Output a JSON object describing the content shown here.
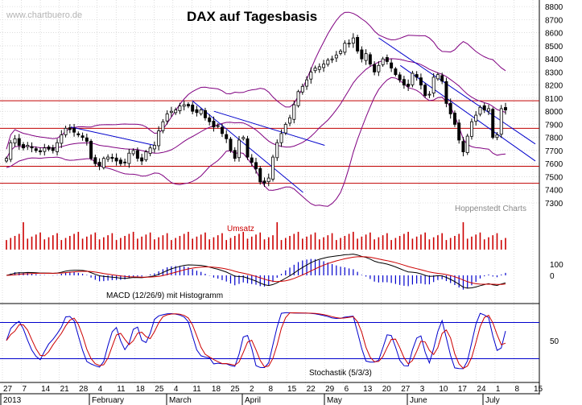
{
  "watermark": "www.chartbuero.de",
  "credit": "Hoppenstedt Charts",
  "colors": {
    "grid": "#c8c8c8",
    "candle": "#000000",
    "bollinger": "#800080",
    "trendline": "#0000cc",
    "support": "#c00000",
    "volume": "#cc0000",
    "macd": "#000000",
    "signal": "#cc0000",
    "histogram": "#0000cc",
    "stoch_k": "#0000cc",
    "stoch_d": "#cc0000"
  },
  "chart_data": [
    {
      "type": "candlestick",
      "title": "DAX auf Tagesbasis",
      "ylim": [
        7220,
        8850
      ],
      "y_ticks": [
        7300,
        7400,
        7500,
        7600,
        7700,
        7800,
        7900,
        8000,
        8100,
        8200,
        8300,
        8400,
        8500,
        8600,
        8700,
        8800
      ],
      "x_date_labels": [
        "27",
        "7",
        "14",
        "21",
        "28",
        "4",
        "11",
        "18",
        "25",
        "4",
        "11",
        "18",
        "25",
        "2",
        "8",
        "15",
        "22",
        "29",
        "6",
        "13",
        "20",
        "27",
        "3",
        "10",
        "17",
        "24",
        "1",
        "8",
        "15"
      ],
      "month_labels": [
        "2013",
        "February",
        "March",
        "April",
        "May",
        "June",
        "July"
      ],
      "horizontal_levels": [
        8080,
        7870,
        7580,
        7450
      ],
      "trend_channel_lines": [
        {
          "from": [
            "2013-01-28",
            7880
          ],
          "to": [
            "2013-02-28",
            7740
          ]
        },
        {
          "from": [
            "2013-03-14",
            8080
          ],
          "to": [
            "2013-04-24",
            7380
          ]
        },
        {
          "from": [
            "2013-03-22",
            8000
          ],
          "to": [
            "2013-05-02",
            7740
          ]
        },
        {
          "from": [
            "2013-05-22",
            8560
          ],
          "to": [
            "2013-07-19",
            7750
          ]
        },
        {
          "from": [
            "2013-05-30",
            8350
          ],
          "to": [
            "2013-07-19",
            7620
          ]
        }
      ],
      "close_series": [
        7640,
        7760,
        7790,
        7740,
        7720,
        7740,
        7720,
        7700,
        7690,
        7720,
        7710,
        7700,
        7760,
        7820,
        7870,
        7860,
        7840,
        7820,
        7800,
        7770,
        7640,
        7600,
        7580,
        7640,
        7650,
        7640,
        7620,
        7600,
        7610,
        7680,
        7700,
        7640,
        7620,
        7690,
        7720,
        7740,
        7850,
        7920,
        7980,
        8000,
        8010,
        8040,
        8050,
        8040,
        8000,
        7990,
        8010,
        7950,
        7920,
        7880,
        7890,
        7830,
        7790,
        7700,
        7640,
        7780,
        7800,
        7650,
        7610,
        7560,
        7460,
        7450,
        7490,
        7650,
        7760,
        7830,
        7900,
        7950,
        8050,
        8150,
        8190,
        8240,
        8300,
        8330,
        8340,
        8360,
        8390,
        8400,
        8430,
        8460,
        8520,
        8520,
        8560,
        8460,
        8400,
        8440,
        8360,
        8300,
        8350,
        8400,
        8380,
        8330,
        8280,
        8240,
        8200,
        8190,
        8290,
        8260,
        8200,
        8120,
        8130,
        8260,
        8280,
        8230,
        8060,
        7980,
        7900,
        7780,
        7690,
        7810,
        7920,
        7970,
        8030,
        8010,
        8020,
        7800,
        7820,
        8020,
        8010
      ]
    },
    {
      "type": "bar",
      "title": "Umsatz"
    },
    {
      "type": "line",
      "title": "MACD (12/26/9) mit Histogramm",
      "ylim": [
        -200,
        200
      ],
      "y_ticks": [
        100,
        0
      ]
    },
    {
      "type": "line",
      "title": "Stochastik (5/3/3)",
      "ylim": [
        -10,
        110
      ],
      "y_ticks": [
        50
      ],
      "reference_levels": [
        20,
        80
      ]
    }
  ]
}
